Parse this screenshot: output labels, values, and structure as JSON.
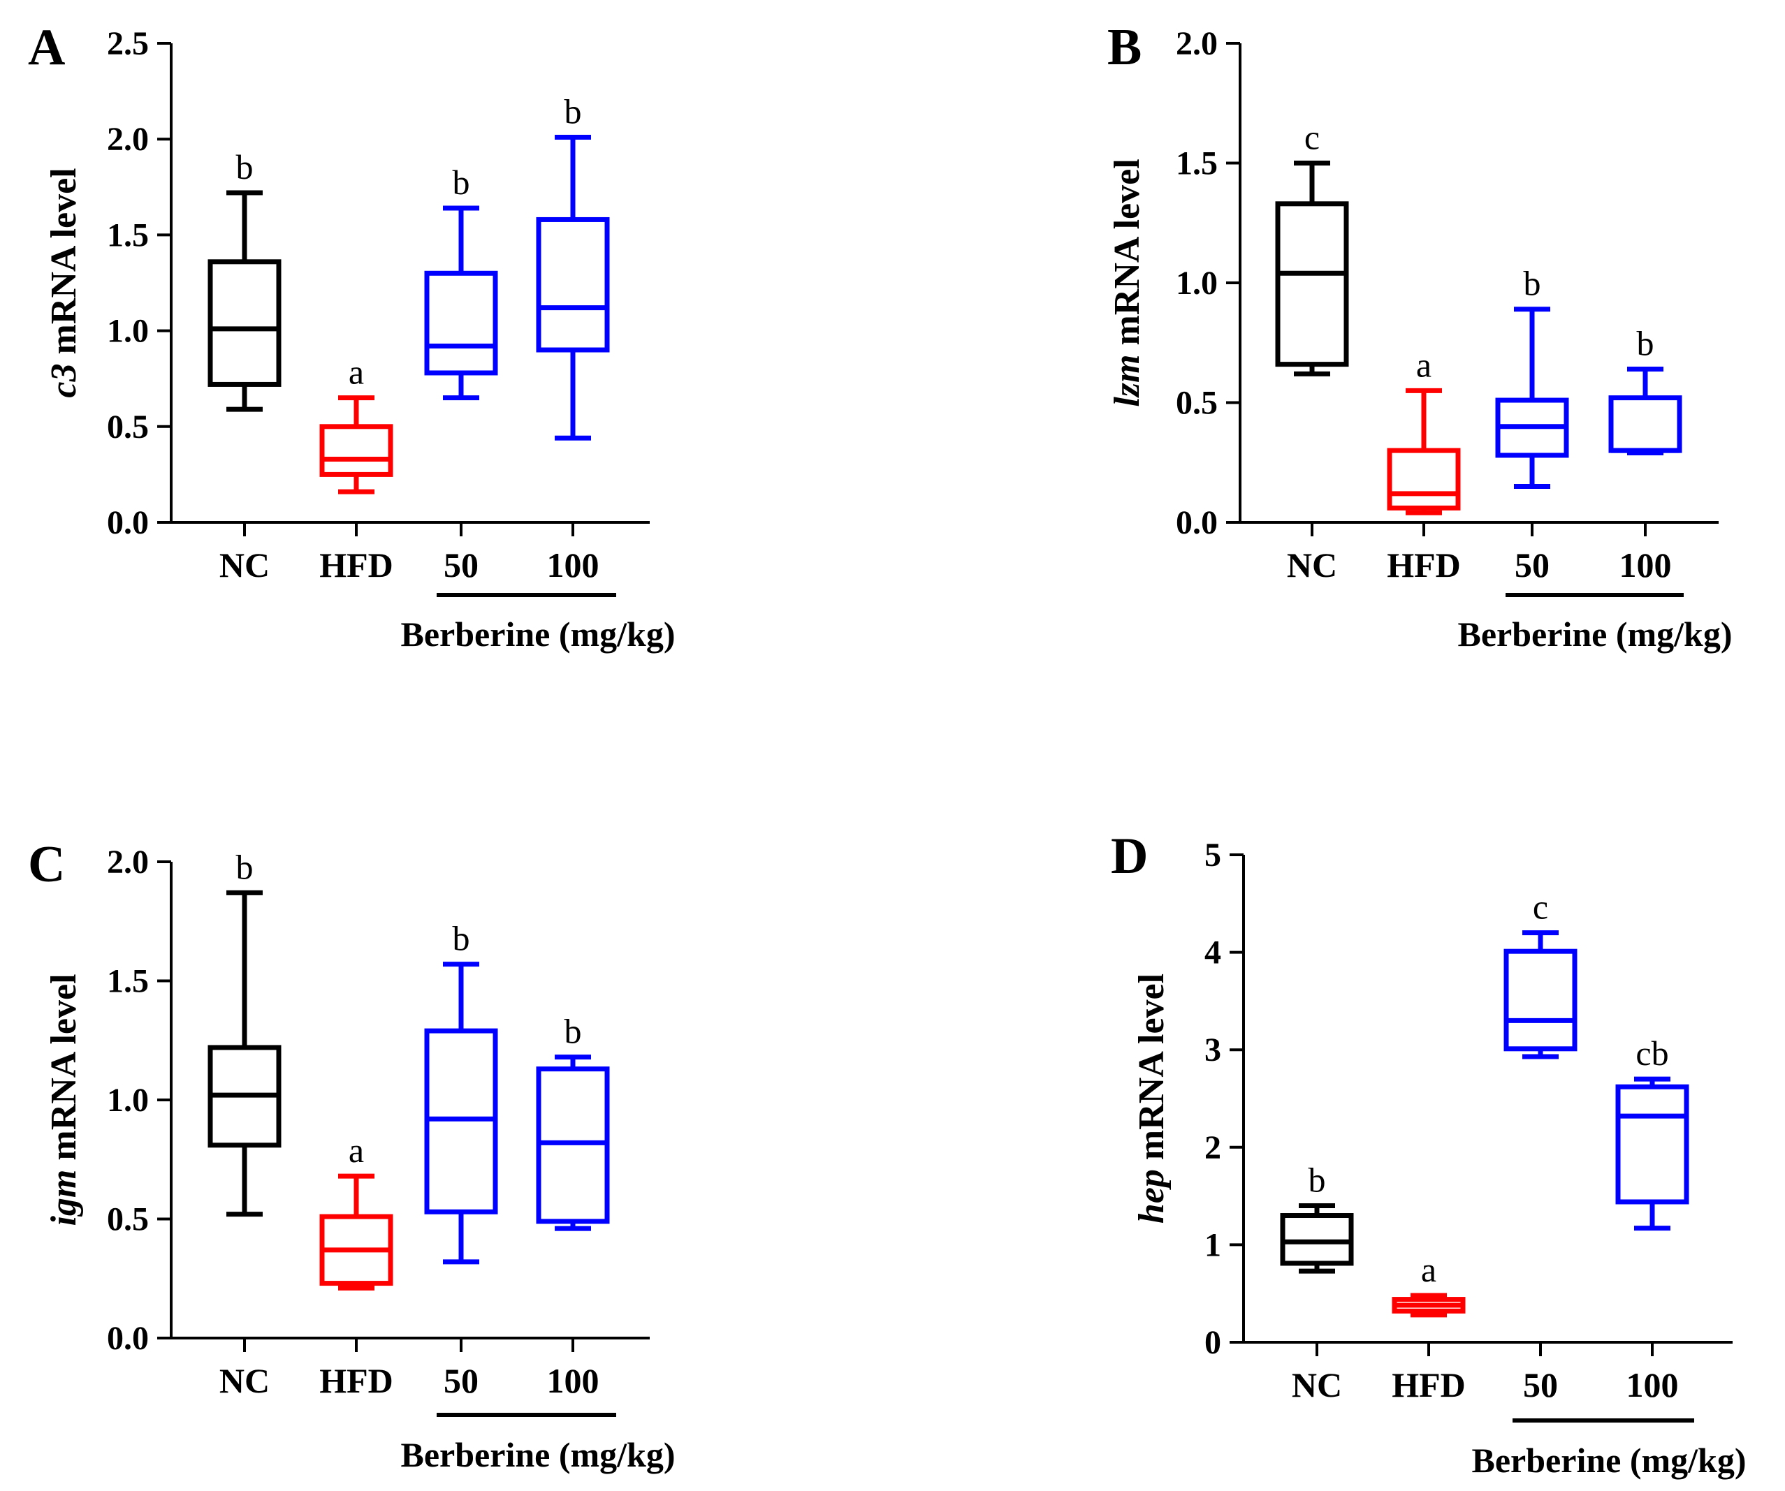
{
  "colors": {
    "NC": "#000000",
    "HFD": "#ff0000",
    "50": "#0000ff",
    "100": "#0000ff",
    "axis": "#000000"
  },
  "chart_data": [
    {
      "panel": "A",
      "type": "box",
      "ylabel_gene": "c3",
      "ylabel_suffix": " mRNA level",
      "ylim": [
        0,
        2.5
      ],
      "yticks": [
        "0.0",
        "0.5",
        "1.0",
        "1.5",
        "2.0",
        "2.5"
      ],
      "yticks_values": [
        0,
        0.5,
        1.0,
        1.5,
        2.0,
        2.5
      ],
      "categories": [
        "NC",
        "HFD",
        "50",
        "100"
      ],
      "group_label": "Berberine (mg/kg)",
      "boxes": [
        {
          "category": "NC",
          "min": 0.59,
          "q1": 0.72,
          "median": 1.01,
          "q3": 1.36,
          "max": 1.72,
          "sig": "b"
        },
        {
          "category": "HFD",
          "min": 0.16,
          "q1": 0.25,
          "median": 0.33,
          "q3": 0.5,
          "max": 0.65,
          "sig": "a"
        },
        {
          "category": "50",
          "min": 0.65,
          "q1": 0.78,
          "median": 0.92,
          "q3": 1.3,
          "max": 1.64,
          "sig": "b"
        },
        {
          "category": "100",
          "min": 0.44,
          "q1": 0.9,
          "median": 1.12,
          "q3": 1.58,
          "max": 2.01,
          "sig": "b"
        }
      ]
    },
    {
      "panel": "B",
      "type": "box",
      "ylabel_gene": "lzm",
      "ylabel_suffix": " mRNA level",
      "ylim": [
        0,
        2.0
      ],
      "yticks": [
        "0.0",
        "0.5",
        "1.0",
        "1.5",
        "2.0"
      ],
      "yticks_values": [
        0,
        0.5,
        1.0,
        1.5,
        2.0
      ],
      "categories": [
        "NC",
        "HFD",
        "50",
        "100"
      ],
      "group_label": "Berberine (mg/kg)",
      "boxes": [
        {
          "category": "NC",
          "min": 0.62,
          "q1": 0.66,
          "median": 1.04,
          "q3": 1.33,
          "max": 1.5,
          "sig": "c"
        },
        {
          "category": "HFD",
          "min": 0.04,
          "q1": 0.06,
          "median": 0.12,
          "q3": 0.3,
          "max": 0.55,
          "sig": "a"
        },
        {
          "category": "50",
          "min": 0.15,
          "q1": 0.28,
          "median": 0.4,
          "q3": 0.51,
          "max": 0.89,
          "sig": "b"
        },
        {
          "category": "100",
          "min": 0.29,
          "q1": 0.3,
          "median": 0.3,
          "q3": 0.52,
          "max": 0.64,
          "sig": "b"
        }
      ]
    },
    {
      "panel": "C",
      "type": "box",
      "ylabel_gene": "igm",
      "ylabel_suffix": " mRNA level",
      "ylim": [
        0,
        2.0
      ],
      "yticks": [
        "0.0",
        "0.5",
        "1.0",
        "1.5",
        "2.0"
      ],
      "yticks_values": [
        0,
        0.5,
        1.0,
        1.5,
        2.0
      ],
      "categories": [
        "NC",
        "HFD",
        "50",
        "100"
      ],
      "group_label": "Berberine (mg/kg)",
      "boxes": [
        {
          "category": "NC",
          "min": 0.52,
          "q1": 0.81,
          "median": 1.02,
          "q3": 1.22,
          "max": 1.87,
          "sig": "b"
        },
        {
          "category": "HFD",
          "min": 0.21,
          "q1": 0.23,
          "median": 0.37,
          "q3": 0.51,
          "max": 0.68,
          "sig": "a"
        },
        {
          "category": "50",
          "min": 0.32,
          "q1": 0.53,
          "median": 0.92,
          "q3": 1.29,
          "max": 1.57,
          "sig": "b"
        },
        {
          "category": "100",
          "min": 0.46,
          "q1": 0.49,
          "median": 0.82,
          "q3": 1.13,
          "max": 1.18,
          "sig": "b"
        }
      ]
    },
    {
      "panel": "D",
      "type": "box",
      "ylabel_gene": "hep",
      "ylabel_suffix": " mRNA level",
      "ylim": [
        0,
        5
      ],
      "yticks": [
        "0",
        "1",
        "2",
        "3",
        "4",
        "5"
      ],
      "yticks_values": [
        0,
        1,
        2,
        3,
        4,
        5
      ],
      "categories": [
        "NC",
        "HFD",
        "50",
        "100"
      ],
      "group_label": "Berberine (mg/kg)",
      "boxes": [
        {
          "category": "NC",
          "min": 0.73,
          "q1": 0.81,
          "median": 1.03,
          "q3": 1.3,
          "max": 1.4,
          "sig": "b"
        },
        {
          "category": "HFD",
          "min": 0.28,
          "q1": 0.32,
          "median": 0.38,
          "q3": 0.44,
          "max": 0.48,
          "sig": "a"
        },
        {
          "category": "50",
          "min": 2.93,
          "q1": 3.01,
          "median": 3.3,
          "q3": 4.01,
          "max": 4.2,
          "sig": "c"
        },
        {
          "category": "100",
          "min": 1.17,
          "q1": 1.44,
          "median": 2.32,
          "q3": 2.62,
          "max": 2.7,
          "sig": "cb"
        }
      ]
    }
  ]
}
